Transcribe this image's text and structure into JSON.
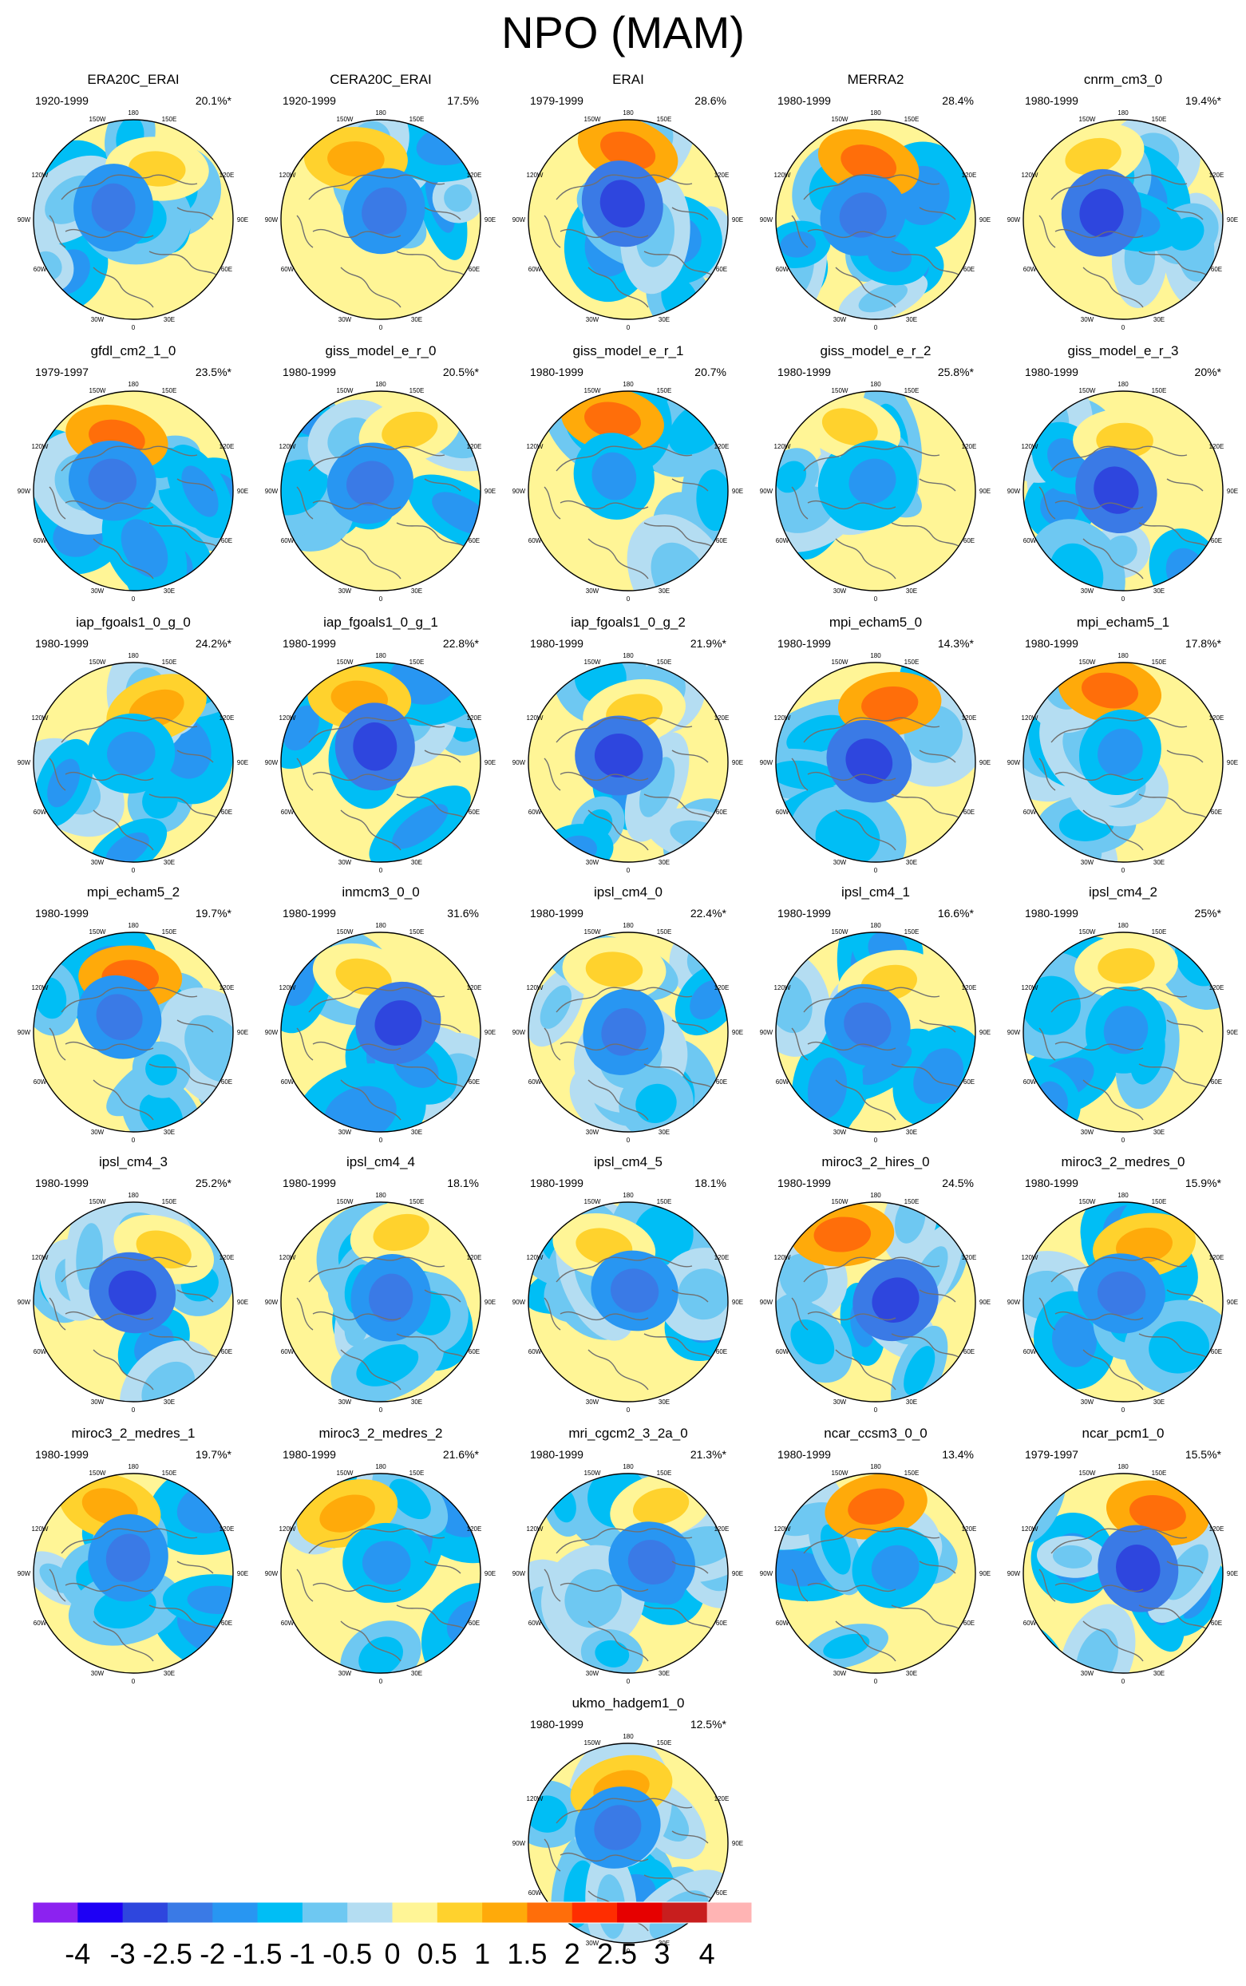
{
  "figure": {
    "title": "NPO (MAM)"
  },
  "longitude_labels": [
    "180",
    "150W",
    "150E",
    "120W",
    "120E",
    "90W",
    "90E",
    "60W",
    "60E",
    "30W",
    "30E",
    "0"
  ],
  "chart_data": {
    "type": "heatmap",
    "title": "NPO (MAM)",
    "description_units": "polar stereographic contour maps of regression pattern, shared colour scale",
    "panels": [
      {
        "name": "ERA20C_ERAI",
        "period": "1920-1999",
        "explained_variance": "20.1%*"
      },
      {
        "name": "CERA20C_ERAI",
        "period": "1920-1999",
        "explained_variance": "17.5%"
      },
      {
        "name": "ERAI",
        "period": "1979-1999",
        "explained_variance": "28.6%"
      },
      {
        "name": "MERRA2",
        "period": "1980-1999",
        "explained_variance": "28.4%"
      },
      {
        "name": "cnrm_cm3_0",
        "period": "1980-1999",
        "explained_variance": "19.4%*"
      },
      {
        "name": "gfdl_cm2_1_0",
        "period": "1979-1997",
        "explained_variance": "23.5%*"
      },
      {
        "name": "giss_model_e_r_0",
        "period": "1980-1999",
        "explained_variance": "20.5%*"
      },
      {
        "name": "giss_model_e_r_1",
        "period": "1980-1999",
        "explained_variance": "20.7%"
      },
      {
        "name": "giss_model_e_r_2",
        "period": "1980-1999",
        "explained_variance": "25.8%*"
      },
      {
        "name": "giss_model_e_r_3",
        "period": "1980-1999",
        "explained_variance": "20%*"
      },
      {
        "name": "iap_fgoals1_0_g_0",
        "period": "1980-1999",
        "explained_variance": "24.2%*"
      },
      {
        "name": "iap_fgoals1_0_g_1",
        "period": "1980-1999",
        "explained_variance": "22.8%*"
      },
      {
        "name": "iap_fgoals1_0_g_2",
        "period": "1980-1999",
        "explained_variance": "21.9%*"
      },
      {
        "name": "mpi_echam5_0",
        "period": "1980-1999",
        "explained_variance": "14.3%*"
      },
      {
        "name": "mpi_echam5_1",
        "period": "1980-1999",
        "explained_variance": "17.8%*"
      },
      {
        "name": "mpi_echam5_2",
        "period": "1980-1999",
        "explained_variance": "19.7%*"
      },
      {
        "name": "inmcm3_0_0",
        "period": "1980-1999",
        "explained_variance": "31.6%"
      },
      {
        "name": "ipsl_cm4_0",
        "period": "1980-1999",
        "explained_variance": "22.4%*"
      },
      {
        "name": "ipsl_cm4_1",
        "period": "1980-1999",
        "explained_variance": "16.6%*"
      },
      {
        "name": "ipsl_cm4_2",
        "period": "1980-1999",
        "explained_variance": "25%*"
      },
      {
        "name": "ipsl_cm4_3",
        "period": "1980-1999",
        "explained_variance": "25.2%*"
      },
      {
        "name": "ipsl_cm4_4",
        "period": "1980-1999",
        "explained_variance": "18.1%"
      },
      {
        "name": "ipsl_cm4_5",
        "period": "1980-1999",
        "explained_variance": "18.1%"
      },
      {
        "name": "miroc3_2_hires_0",
        "period": "1980-1999",
        "explained_variance": "24.5%"
      },
      {
        "name": "miroc3_2_medres_0",
        "period": "1980-1999",
        "explained_variance": "15.9%*"
      },
      {
        "name": "miroc3_2_medres_1",
        "period": "1980-1999",
        "explained_variance": "19.7%*"
      },
      {
        "name": "miroc3_2_medres_2",
        "period": "1980-1999",
        "explained_variance": "21.6%*"
      },
      {
        "name": "mri_cgcm2_3_2a_0",
        "period": "1980-1999",
        "explained_variance": "21.3%*"
      },
      {
        "name": "ncar_ccsm3_0_0",
        "period": "1980-1999",
        "explained_variance": "13.4%"
      },
      {
        "name": "ncar_pcm1_0",
        "period": "1979-1997",
        "explained_variance": "15.5%*"
      },
      {
        "name": "ukmo_hadgem1_0",
        "period": "1980-1999",
        "explained_variance": "12.5%*"
      }
    ],
    "colorbar": {
      "levels": [
        "-4",
        "-3",
        "-2.5",
        "-2",
        "-1.5",
        "-1",
        "-0.5",
        "0",
        "0.5",
        "1",
        "1.5",
        "2",
        "2.5",
        "3",
        "4"
      ],
      "colors": [
        "#8c22f0",
        "#1e00f5",
        "#2e46de",
        "#3a7ae6",
        "#2896f2",
        "#00bef5",
        "#6ec8f2",
        "#b4ddf2",
        "#fff596",
        "#ffd22d",
        "#ffaa0a",
        "#ff6e0a",
        "#ff2d00",
        "#e60000",
        "#c81e1e",
        "#ffb4b4"
      ]
    }
  }
}
